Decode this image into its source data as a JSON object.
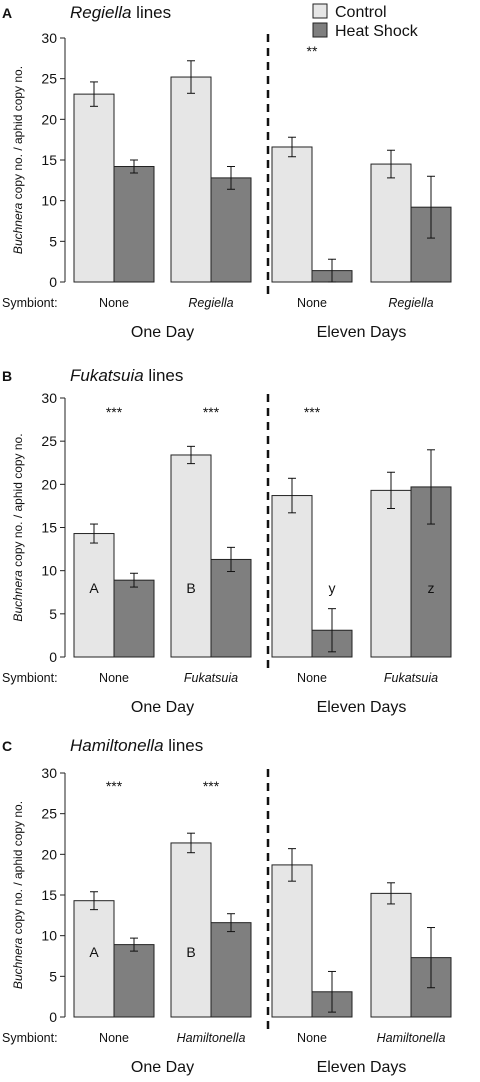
{
  "legend": [
    {
      "label": "Control",
      "color": "#e6e6e6"
    },
    {
      "label": "Heat Shock",
      "color": "#7f7f7f"
    }
  ],
  "symbiont_label": "Symbiont:",
  "y_axis_label": {
    "italic": "Buchnera",
    "rest": " copy no. / aphid copy no."
  },
  "colors": {
    "control": "#e6e6e6",
    "heat_shock": "#7f7f7f",
    "stroke": "#222222"
  },
  "chart_data": [
    {
      "panel": "A",
      "type": "bar",
      "title_italic": "Regiella",
      "title_rest": " lines",
      "ylim": [
        0,
        30
      ],
      "yticks": [
        0,
        5,
        10,
        15,
        20,
        25,
        30
      ],
      "groups": [
        "One Day",
        "Eleven Days"
      ],
      "categories": [
        {
          "name": "None",
          "italic": false
        },
        {
          "name": "Regiella",
          "italic": true
        },
        {
          "name": "None",
          "italic": false
        },
        {
          "name": "Regiella",
          "italic": true
        }
      ],
      "series": [
        {
          "name": "Control",
          "values": [
            23.1,
            25.2,
            16.6,
            14.5
          ],
          "errors": [
            1.5,
            2.0,
            1.2,
            1.7
          ]
        },
        {
          "name": "Heat Shock",
          "values": [
            14.2,
            12.8,
            1.4,
            9.2
          ],
          "errors": [
            0.8,
            1.4,
            1.4,
            3.8
          ]
        }
      ],
      "significance": [
        "",
        "",
        "**",
        ""
      ],
      "letters_control": [
        "",
        "",
        "",
        ""
      ],
      "letters_heat": [
        "",
        "",
        "",
        ""
      ]
    },
    {
      "panel": "B",
      "type": "bar",
      "title_italic": "Fukatsuia",
      "title_rest": " lines",
      "ylim": [
        0,
        30
      ],
      "yticks": [
        0,
        5,
        10,
        15,
        20,
        25,
        30
      ],
      "groups": [
        "One Day",
        "Eleven Days"
      ],
      "categories": [
        {
          "name": "None",
          "italic": false
        },
        {
          "name": "Fukatsuia",
          "italic": true
        },
        {
          "name": "None",
          "italic": false
        },
        {
          "name": "Fukatsuia",
          "italic": true
        }
      ],
      "series": [
        {
          "name": "Control",
          "values": [
            14.3,
            23.4,
            18.7,
            19.3
          ],
          "errors": [
            1.1,
            1.0,
            2.0,
            2.1
          ]
        },
        {
          "name": "Heat Shock",
          "values": [
            8.9,
            11.3,
            3.1,
            19.7
          ],
          "errors": [
            0.8,
            1.4,
            2.5,
            4.3
          ]
        }
      ],
      "significance": [
        "***",
        "***",
        "***",
        ""
      ],
      "letters_control": [
        "A",
        "B",
        "",
        ""
      ],
      "letters_heat": [
        "",
        "",
        "y",
        "z"
      ]
    },
    {
      "panel": "C",
      "type": "bar",
      "title_italic": "Hamiltonella",
      "title_rest": " lines",
      "ylim": [
        0,
        30
      ],
      "yticks": [
        0,
        5,
        10,
        15,
        20,
        25,
        30
      ],
      "groups": [
        "One Day",
        "Eleven Days"
      ],
      "categories": [
        {
          "name": "None",
          "italic": false
        },
        {
          "name": "Hamiltonella",
          "italic": true
        },
        {
          "name": "None",
          "italic": false
        },
        {
          "name": "Hamiltonella",
          "italic": true
        }
      ],
      "series": [
        {
          "name": "Control",
          "values": [
            14.3,
            21.4,
            18.7,
            15.2
          ],
          "errors": [
            1.1,
            1.2,
            2.0,
            1.3
          ]
        },
        {
          "name": "Heat Shock",
          "values": [
            8.9,
            11.6,
            3.1,
            7.3
          ],
          "errors": [
            0.8,
            1.1,
            2.5,
            3.7
          ]
        }
      ],
      "significance": [
        "***",
        "***",
        "",
        ""
      ],
      "letters_control": [
        "A",
        "B",
        "",
        ""
      ],
      "letters_heat": [
        "",
        "",
        "",
        ""
      ]
    }
  ]
}
